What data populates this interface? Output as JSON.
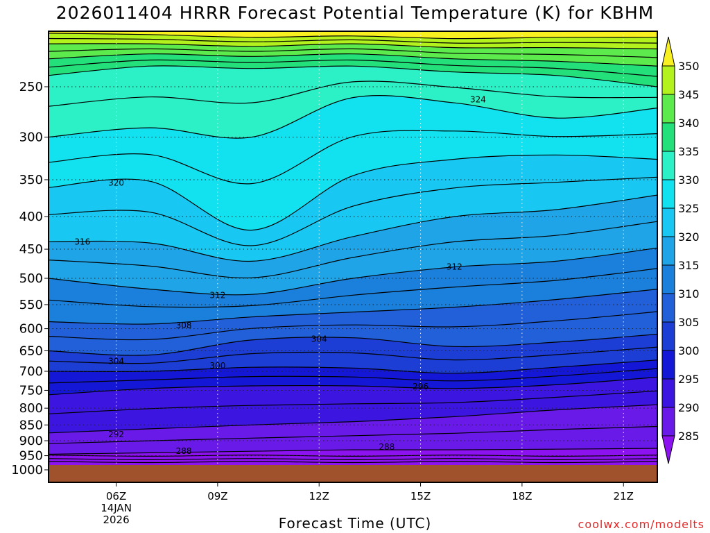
{
  "title": "2026011404 HRRR Forecast Potential Temperature (K) for KBHM",
  "credit": "coolwx.com/modelts",
  "chart_data": {
    "type": "contour-filled time-height cross section",
    "xlabel": "Forecast Time (UTC)",
    "ylabel": "",
    "y_axis": "pressure (hPa), log scale, top ~200 hPa",
    "y_ticks": [
      250,
      300,
      350,
      400,
      450,
      500,
      550,
      600,
      650,
      700,
      750,
      800,
      850,
      900,
      950,
      1000
    ],
    "x_range_utc_hours": [
      4,
      22
    ],
    "x_ticks": [
      {
        "hour": 6,
        "label": "06Z",
        "sub1": "14JAN",
        "sub2": "2026"
      },
      {
        "hour": 9,
        "label": "09Z"
      },
      {
        "hour": 12,
        "label": "12Z"
      },
      {
        "hour": 15,
        "label": "15Z"
      },
      {
        "hour": 18,
        "label": "18Z"
      },
      {
        "hour": 21,
        "label": "21Z"
      }
    ],
    "grid": "dotted",
    "legend_placement": "right colorbar",
    "colorbar_levels": [
      285,
      290,
      295,
      300,
      305,
      310,
      315,
      320,
      325,
      330,
      335,
      340,
      345,
      350
    ],
    "colorbar_labels": [
      "285",
      "290",
      "295",
      "300",
      "305",
      "310",
      "315",
      "320",
      "325",
      "330",
      "335",
      "340",
      "345",
      "350"
    ],
    "contour_labels": [
      {
        "text": "324",
        "hour": 16.7,
        "p": 262
      },
      {
        "text": "320",
        "hour": 6.0,
        "p": 354
      },
      {
        "text": "316",
        "hour": 5.0,
        "p": 438
      },
      {
        "text": "312",
        "hour": 16.0,
        "p": 480
      },
      {
        "text": "312",
        "hour": 9.0,
        "p": 532
      },
      {
        "text": "308",
        "hour": 8.0,
        "p": 593
      },
      {
        "text": "304",
        "hour": 12.0,
        "p": 623
      },
      {
        "text": "304",
        "hour": 6.0,
        "p": 675
      },
      {
        "text": "300",
        "hour": 9.0,
        "p": 686
      },
      {
        "text": "296",
        "hour": 15.0,
        "p": 740
      },
      {
        "text": "292",
        "hour": 6.0,
        "p": 880
      },
      {
        "text": "288",
        "hour": 8.0,
        "p": 935
      },
      {
        "text": "288",
        "hour": 14.0,
        "p": 920
      }
    ],
    "colors": {
      "ground": "#a0522d",
      "credit": "#e02828",
      "bands": [
        "#8c12f0",
        "#6a1ae8",
        "#3c16e0",
        "#1418d6",
        "#1c3ed4",
        "#2260da",
        "#1a80dc",
        "#20a4e8",
        "#19c8f2",
        "#12e2ef",
        "#2cf0c6",
        "#24e07a",
        "#5cea4c",
        "#b4f21e",
        "#f8f020"
      ]
    },
    "isentropes_K": [
      {
        "theta": 288,
        "p": [
          945,
          940,
          935,
          930,
          930,
          928,
          925
        ]
      },
      {
        "theta": 292,
        "p": [
          875,
          862,
          850,
          840,
          825,
          805,
          790
        ]
      },
      {
        "theta": 296,
        "p": [
          762,
          745,
          738,
          738,
          745,
          735,
          715
        ]
      },
      {
        "theta": 300,
        "p": [
          700,
          700,
          690,
          692,
          705,
          690,
          672
        ]
      },
      {
        "theta": 304,
        "p": [
          650,
          660,
          625,
          620,
          640,
          630,
          612
        ]
      },
      {
        "theta": 308,
        "p": [
          585,
          590,
          575,
          565,
          555,
          540,
          520
        ]
      },
      {
        "theta": 312,
        "p": [
          500,
          520,
          530,
          500,
          480,
          470,
          448
        ]
      },
      {
        "theta": 316,
        "p": [
          438,
          440,
          470,
          430,
          400,
          390,
          370
        ]
      },
      {
        "theta": 320,
        "p": [
          360,
          352,
          420,
          345,
          325,
          320,
          325
        ]
      },
      {
        "theta": 324,
        "p": [
          300,
          290,
          300,
          260,
          265,
          280,
          270
        ]
      },
      {
        "theta": 328,
        "p": [
          240,
          232,
          234,
          232,
          237,
          240,
          250
        ]
      },
      {
        "theta": 332,
        "p": [
          226,
          222,
          224,
          222,
          226,
          228,
          232
        ]
      },
      {
        "theta": 336,
        "p": [
          214,
          214,
          216,
          214,
          217,
          217,
          218
        ]
      },
      {
        "theta": 340,
        "p": [
          206,
          207,
          209,
          208,
          210,
          209,
          209
        ]
      }
    ]
  }
}
